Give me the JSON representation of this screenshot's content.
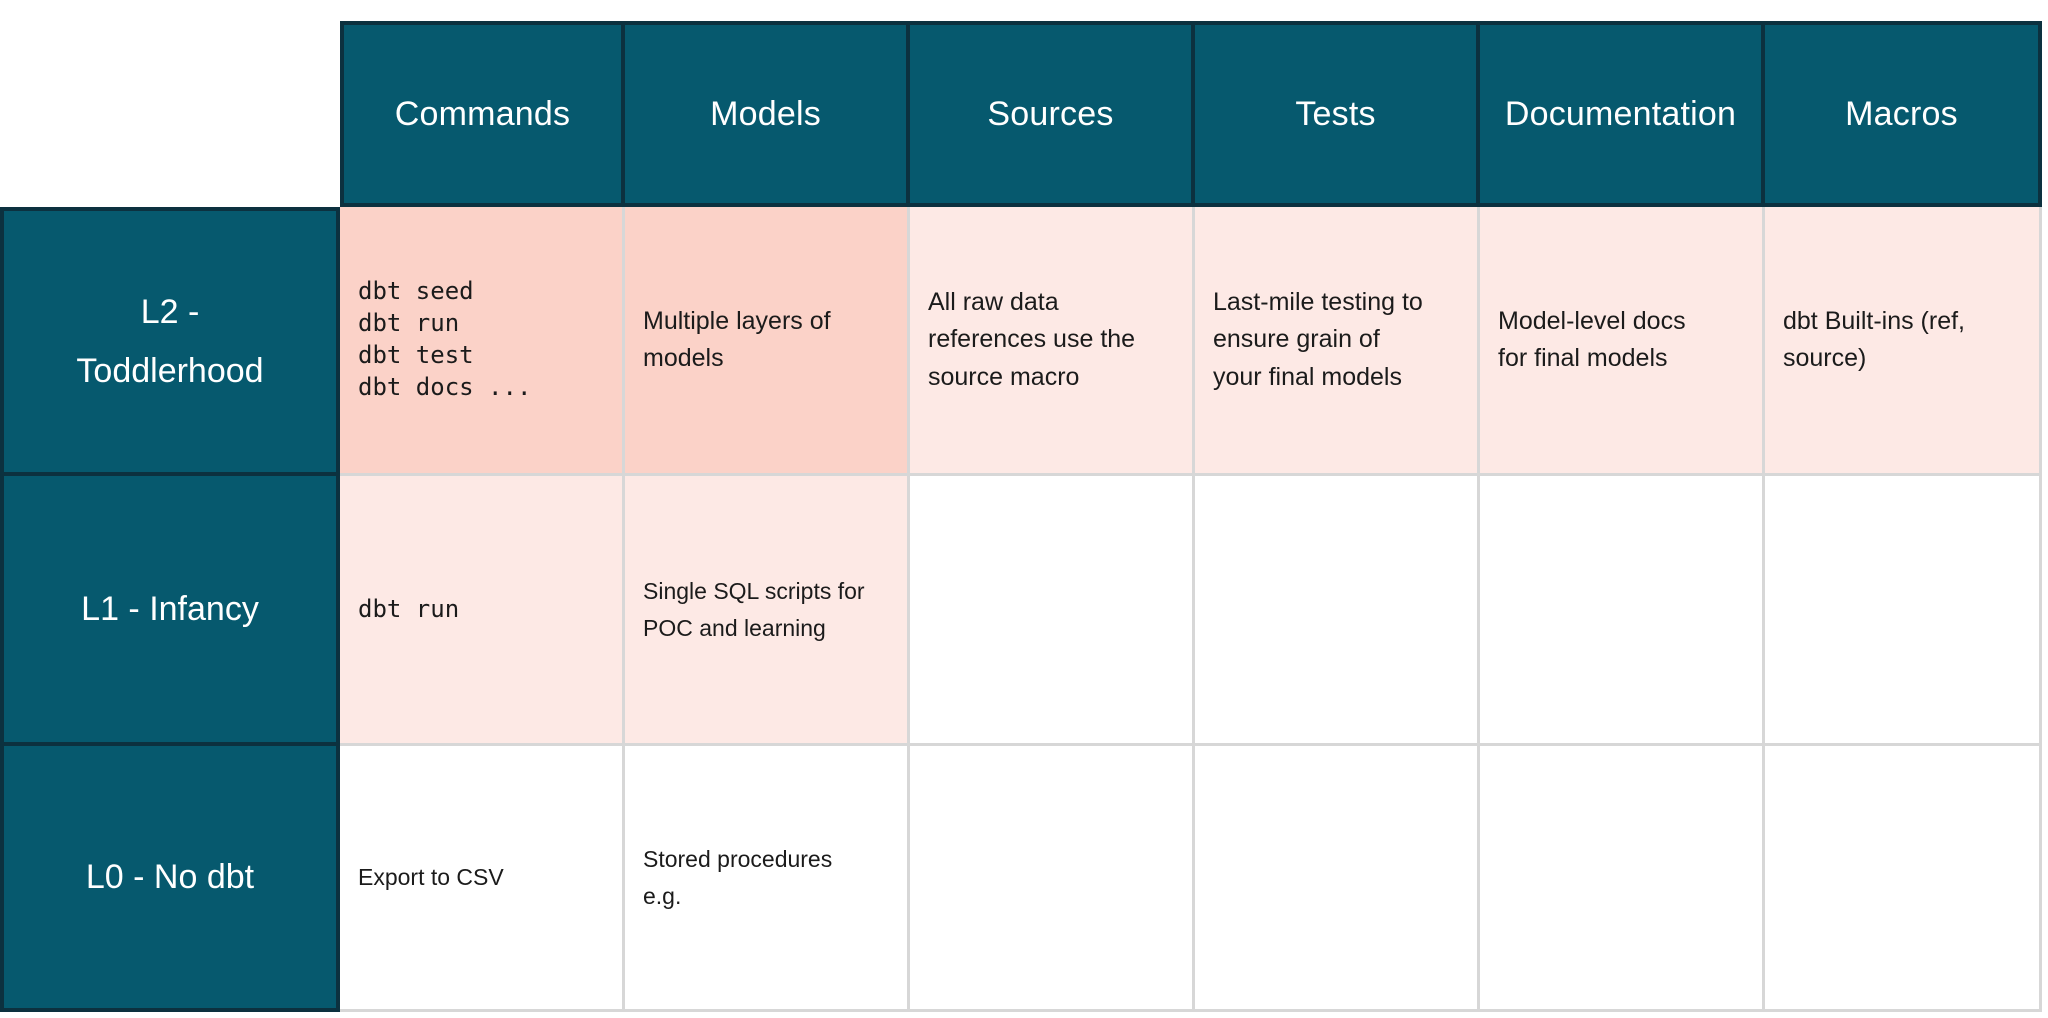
{
  "colors": {
    "teal": "#06596E",
    "dark_border": "#0C313F",
    "salmon": "#FBD2C8",
    "pink": "#FDE9E5",
    "gridline": "#D7D7D7",
    "body_text": "#1B1B1B"
  },
  "header": {
    "columns": [
      "Commands",
      "Models",
      "Sources",
      "Tests",
      "Documentation",
      "Macros"
    ]
  },
  "rows": [
    {
      "label": "L2 -\nToddlerhood",
      "cells": [
        "dbt seed\ndbt run\ndbt test\ndbt docs ...",
        "Multiple layers of\nmodels",
        "All raw data\nreferences use the\nsource macro",
        "Last-mile testing to\nensure grain of\nyour final models",
        "Model-level docs\nfor final models",
        "dbt Built-ins (ref,\nsource)"
      ]
    },
    {
      "label": "L1 - Infancy",
      "cells": [
        "dbt run",
        "Single SQL scripts for\nPOC and learning",
        "",
        "",
        "",
        ""
      ]
    },
    {
      "label": "L0 - No dbt",
      "cells": [
        "Export to CSV",
        "Stored procedures\ne.g.",
        "",
        "",
        "",
        ""
      ]
    }
  ]
}
